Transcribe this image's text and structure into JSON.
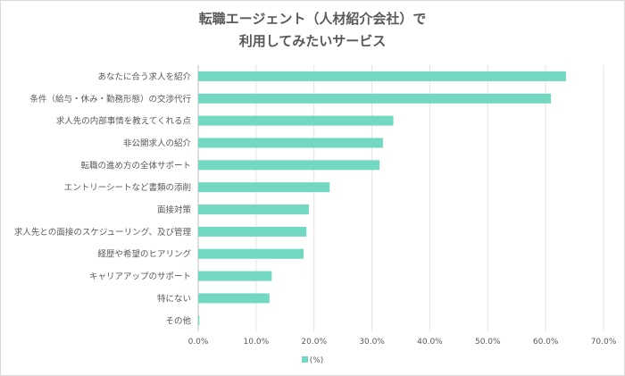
{
  "chart_data": {
    "type": "bar",
    "orientation": "horizontal",
    "title_lines": [
      "転職エージェント（人材紹介会社）で",
      "利用してみたいサービス"
    ],
    "categories": [
      "あなたに合う求人を紹介",
      "条件（給与・休み・勤務形態）の交渉代行",
      "求人先の内部事情を教えてくれる点",
      "非公開求人の紹介",
      "転職の進め方の全体サポート",
      "エントリーシートなど書類の添削",
      "面接対策",
      "求人先との面接のスケジューリング、及び管理",
      "経歴や希望のヒアリング",
      "キャリアアップのサポート",
      "特にない",
      "その他"
    ],
    "series": [
      {
        "name": "(%)",
        "values": [
          63.5,
          60.9,
          33.7,
          31.9,
          31.3,
          22.7,
          19.1,
          18.7,
          18.2,
          12.7,
          12.3,
          0.2
        ]
      }
    ],
    "xlim": [
      0,
      70
    ],
    "xticks": [
      "0.0%",
      "10.0%",
      "20.0%",
      "30.0%",
      "40.0%",
      "50.0%",
      "60.0%",
      "70.0%"
    ],
    "grid": true,
    "legend": "bottom",
    "color": "#72d8c2"
  }
}
